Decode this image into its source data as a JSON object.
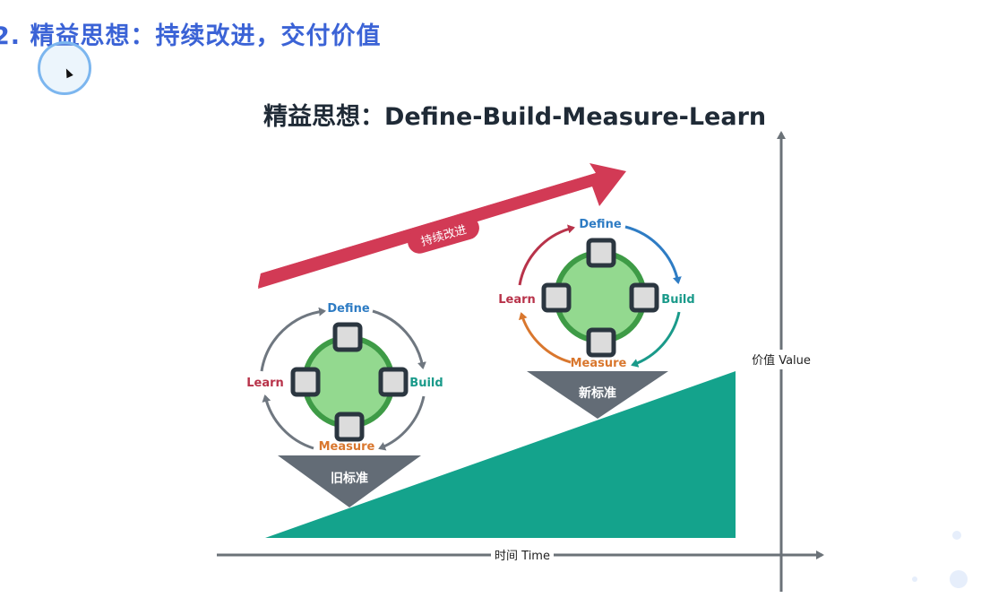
{
  "slide": {
    "heading": "2. 精益思想：持续改进，交付价值"
  },
  "diagram": {
    "title": "精益思想：Define-Build-Measure-Learn",
    "improvement_arrow_label": "持续改进",
    "old_cycle": {
      "steps": [
        "Define",
        "Build",
        "Measure",
        "Learn"
      ],
      "base_label": "旧标准"
    },
    "new_cycle": {
      "steps": [
        "Define",
        "Build",
        "Measure",
        "Learn"
      ],
      "base_label": "新标准"
    },
    "x_axis_label": "时间 Time",
    "y_axis_label": "价值 Value",
    "colors": {
      "define": "#2e7cc4",
      "build": "#1a9a8a",
      "measure": "#d9772e",
      "learn": "#b8334a",
      "arrow": "#d23a55",
      "wedge": "#14a38c",
      "circle_fill": "#93d98f",
      "circle_stroke": "#3e9b46",
      "base_triangle": "#636c76",
      "axis": "#6b7278",
      "heading": "#3b63d6"
    }
  }
}
